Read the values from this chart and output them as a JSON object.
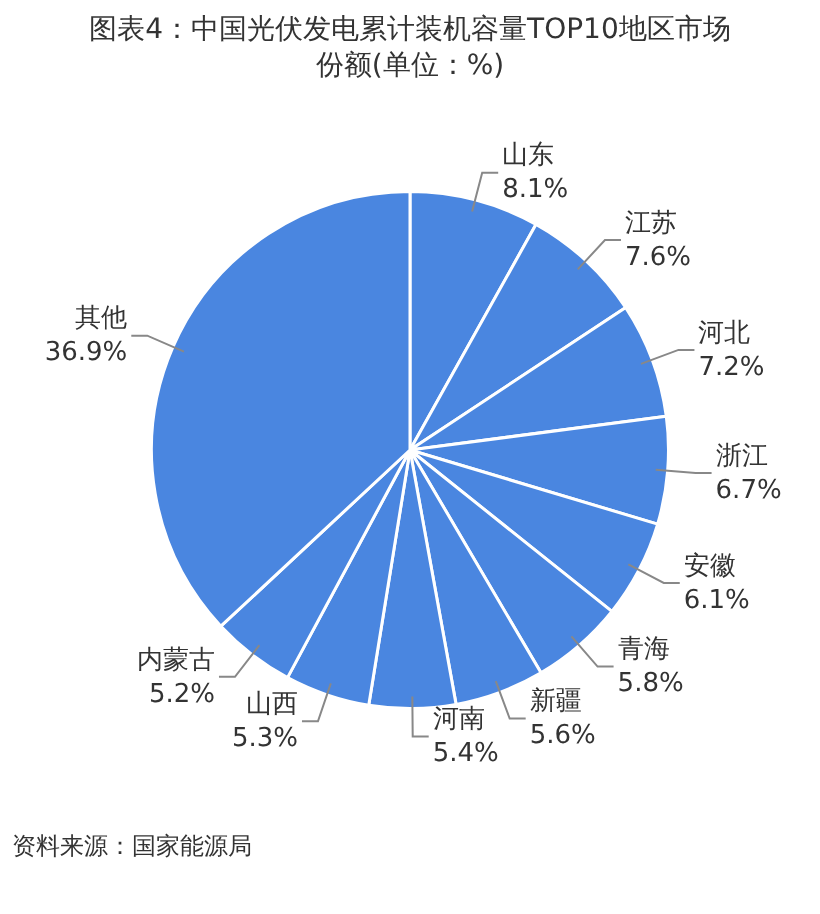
{
  "chart_data": {
    "type": "pie",
    "title": "图表4：中国光伏发电累计装机容量TOP10地区市场份额(单位：%)",
    "categories": [
      "山东",
      "江苏",
      "河北",
      "浙江",
      "安徽",
      "青海",
      "新疆",
      "河南",
      "山西",
      "内蒙古",
      "其他"
    ],
    "values": [
      8.1,
      7.6,
      7.2,
      6.7,
      6.1,
      5.8,
      5.6,
      5.4,
      5.3,
      5.2,
      36.9
    ],
    "value_labels": [
      "8.1%",
      "7.6%",
      "7.2%",
      "6.7%",
      "6.1%",
      "5.8%",
      "5.6%",
      "5.4%",
      "5.3%",
      "5.2%",
      "36.9%"
    ],
    "colors": [
      "#4a86e0",
      "#4a86e0",
      "#4a86e0",
      "#4a86e0",
      "#4a86e0",
      "#4a86e0",
      "#4a86e0",
      "#4a86e0",
      "#4a86e0",
      "#4a86e0",
      "#4a86e0"
    ],
    "legend": false,
    "annotations": [
      "资料来源：国家能源局"
    ]
  }
}
